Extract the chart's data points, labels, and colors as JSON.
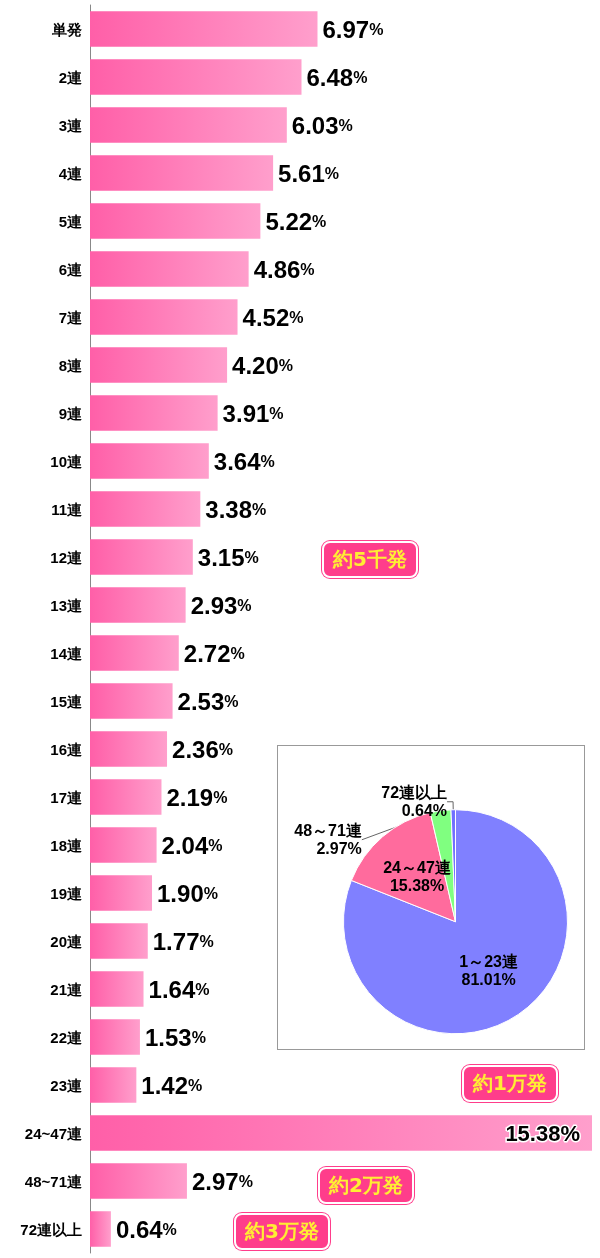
{
  "chart_data": [
    {
      "type": "bar",
      "orientation": "horizontal",
      "categories": [
        "単発",
        "2連",
        "3連",
        "4連",
        "5連",
        "6連",
        "7連",
        "8連",
        "9連",
        "10連",
        "11連",
        "12連",
        "13連",
        "14連",
        "15連",
        "16連",
        "17連",
        "18連",
        "19連",
        "20連",
        "21連",
        "22連",
        "23連",
        "24~47連",
        "48~71連",
        "72連以上"
      ],
      "values": [
        6.97,
        6.48,
        6.03,
        5.61,
        5.22,
        4.86,
        4.52,
        4.2,
        3.91,
        3.64,
        3.38,
        3.15,
        2.93,
        2.72,
        2.53,
        2.36,
        2.19,
        2.04,
        1.9,
        1.77,
        1.64,
        1.53,
        1.42,
        15.38,
        2.97,
        0.64
      ],
      "value_labels": [
        "6.97%",
        "6.48%",
        "6.03%",
        "5.61%",
        "5.22%",
        "4.86%",
        "4.52%",
        "4.20%",
        "3.91%",
        "3.64%",
        "3.38%",
        "3.15%",
        "2.93%",
        "2.72%",
        "2.53%",
        "2.36%",
        "2.19%",
        "2.04%",
        "1.90%",
        "1.77%",
        "1.64%",
        "1.53%",
        "1.42%",
        "15.38%",
        "2.97%",
        "0.64%"
      ],
      "color": "#ff5fa8",
      "annotations": [
        "約5千発",
        "約1万発",
        "約2万発",
        "約3万発"
      ]
    },
    {
      "type": "pie",
      "categories": [
        "1～23連",
        "24～47連",
        "48～71連",
        "72連以上"
      ],
      "values": [
        81.01,
        15.38,
        2.97,
        0.64
      ],
      "value_labels": [
        "81.01%",
        "15.38%",
        "2.97%",
        "0.64%"
      ],
      "colors": [
        "#8080ff",
        "#ff6b9d",
        "#80ff80",
        "#7070ff"
      ]
    }
  ]
}
